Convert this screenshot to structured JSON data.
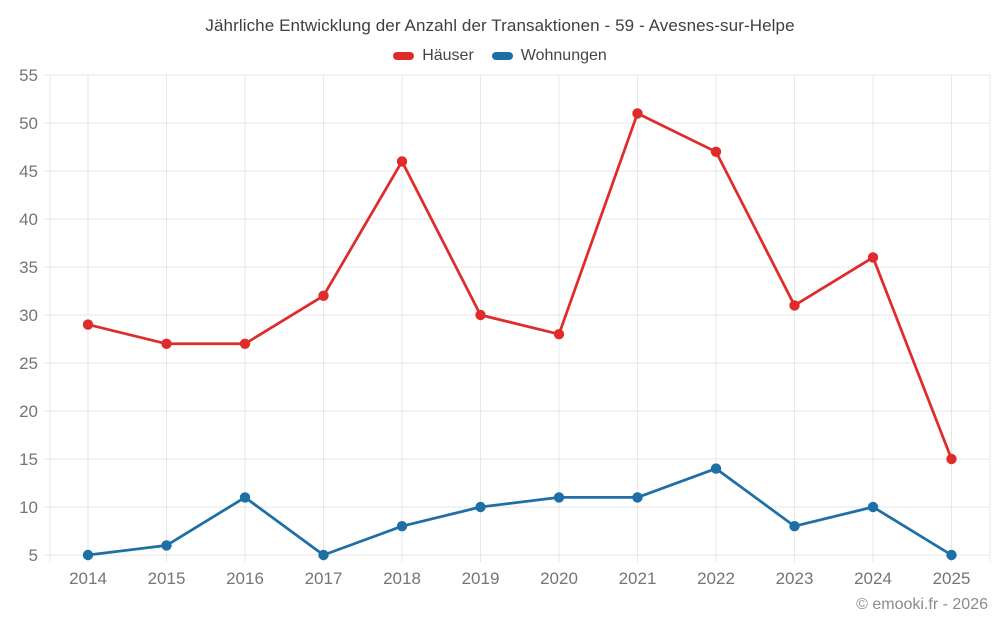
{
  "title": "Jährliche Entwicklung der Anzahl der Transaktionen - 59 - Avesnes-sur-Helpe",
  "copyright": "© emooki.fr - 2026",
  "colors": {
    "haeuser": "#e02b2b",
    "wohnungen": "#1d6fa5",
    "grid": "#e7e7e7",
    "axis_label": "#757575",
    "title_text": "#3f3f3f",
    "copyright_text": "#8b8b8b"
  },
  "chart_data": {
    "type": "line",
    "title": "Jährliche Entwicklung der Anzahl der Transaktionen - 59 - Avesnes-sur-Helpe",
    "categories": [
      "2014",
      "2015",
      "2016",
      "2017",
      "2018",
      "2019",
      "2020",
      "2021",
      "2022",
      "2023",
      "2024",
      "2025"
    ],
    "series": [
      {
        "name": "Häuser",
        "color": "#e02b2b",
        "values": [
          29,
          27,
          27,
          32,
          46,
          30,
          28,
          51,
          47,
          31,
          36,
          15
        ]
      },
      {
        "name": "Wohnungen",
        "color": "#1d6fa5",
        "values": [
          5,
          6,
          11,
          5,
          8,
          10,
          11,
          11,
          14,
          8,
          10,
          5
        ]
      }
    ],
    "xlabel": "",
    "ylabel": "",
    "ylim": [
      5,
      55
    ],
    "ytick_step": 5,
    "ytick_labels": [
      "5",
      "10",
      "15",
      "20",
      "25",
      "30",
      "35",
      "40",
      "45",
      "50",
      "55"
    ],
    "grid": true,
    "legend_position": "top",
    "marker": "circle"
  }
}
